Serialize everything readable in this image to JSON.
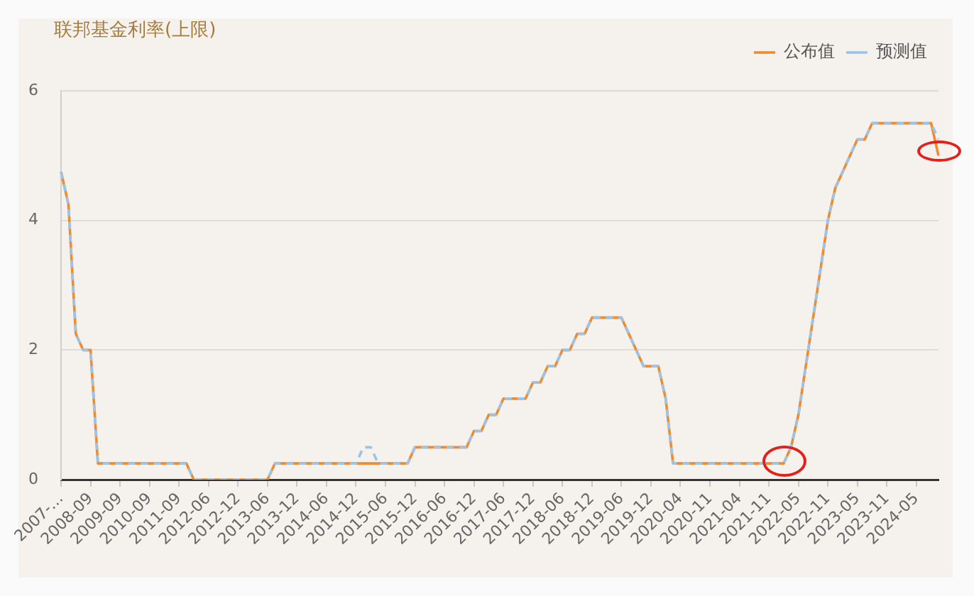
{
  "chart_data": {
    "type": "line",
    "title": "联邦基金利率(上限)",
    "categories": [
      "2007-…",
      null,
      null,
      null,
      "2008-09",
      null,
      null,
      null,
      "2009-09",
      null,
      null,
      null,
      "2010-09",
      null,
      null,
      null,
      "2011-09",
      null,
      null,
      null,
      "2012-06",
      null,
      null,
      null,
      "2012-12",
      null,
      null,
      null,
      "2013-06",
      null,
      null,
      null,
      "2013-12",
      null,
      null,
      null,
      "2014-06",
      null,
      null,
      null,
      "2014-12",
      null,
      null,
      null,
      "2015-06",
      null,
      null,
      null,
      "2015-12",
      null,
      null,
      null,
      "2016-06",
      null,
      null,
      null,
      "2016-12",
      null,
      null,
      null,
      "2017-06",
      null,
      null,
      null,
      "2017-12",
      null,
      null,
      null,
      "2018-06",
      null,
      null,
      null,
      "2018-12",
      null,
      null,
      null,
      "2019-06",
      null,
      null,
      null,
      "2019-12",
      null,
      null,
      null,
      "2020-04",
      null,
      null,
      null,
      "2020-11",
      null,
      null,
      null,
      "2021-04",
      null,
      null,
      null,
      "2021-11",
      null,
      null,
      null,
      "2022-05",
      null,
      null,
      null,
      "2022-11",
      null,
      null,
      null,
      "2023-05",
      null,
      null,
      null,
      "2023-11",
      null,
      null,
      null,
      "2024-05",
      null,
      null,
      null
    ],
    "series": [
      {
        "name": "公布值",
        "color": "#f08c2e",
        "line_style": "solid",
        "values": [
          4.75,
          4.25,
          2.25,
          2,
          2,
          0.25,
          0.25,
          0.25,
          0.25,
          0.25,
          0.25,
          0.25,
          0.25,
          0.25,
          0.25,
          0.25,
          0.25,
          0.25,
          0,
          0,
          0,
          0,
          0,
          0,
          0,
          0,
          0,
          0,
          0,
          0.25,
          0.25,
          0.25,
          0.25,
          0.25,
          0.25,
          0.25,
          0.25,
          0.25,
          0.25,
          0.25,
          0.25,
          0.25,
          0.25,
          0.25,
          0.25,
          0.25,
          0.25,
          0.25,
          0.5,
          0.5,
          0.5,
          0.5,
          0.5,
          0.5,
          0.5,
          0.5,
          0.75,
          0.75,
          1,
          1,
          1.25,
          1.25,
          1.25,
          1.25,
          1.5,
          1.5,
          1.75,
          1.75,
          2,
          2,
          2.25,
          2.25,
          2.5,
          2.5,
          2.5,
          2.5,
          2.5,
          2.25,
          2,
          1.75,
          1.75,
          1.75,
          1.25,
          0.25,
          0.25,
          0.25,
          0.25,
          0.25,
          0.25,
          0.25,
          0.25,
          0.25,
          0.25,
          0.25,
          0.25,
          0.25,
          0.25,
          0.25,
          0.25,
          0.5,
          1,
          1.75,
          2.5,
          3.25,
          4,
          4.5,
          4.75,
          5,
          5.25,
          5.25,
          5.5,
          5.5,
          5.5,
          5.5,
          5.5,
          5.5,
          5.5,
          5.5,
          5.5,
          5
        ]
      },
      {
        "name": "预测值",
        "color": "#9dc3e6",
        "line_style": "dashed",
        "values": [
          4.75,
          4.25,
          2.25,
          2,
          2,
          0.25,
          0.25,
          0.25,
          0.25,
          0.25,
          0.25,
          0.25,
          0.25,
          0.25,
          0.25,
          0.25,
          0.25,
          0.25,
          0,
          0,
          0,
          0,
          0,
          0,
          0,
          0,
          0,
          0,
          0,
          0.25,
          0.25,
          0.25,
          0.25,
          0.25,
          0.25,
          0.25,
          0.25,
          0.25,
          0.25,
          0.25,
          0.25,
          0.5,
          0.5,
          0.25,
          0.25,
          0.25,
          0.25,
          0.25,
          0.5,
          0.5,
          0.5,
          0.5,
          0.5,
          0.5,
          0.5,
          0.5,
          0.75,
          0.75,
          1,
          1,
          1.25,
          1.25,
          1.25,
          1.25,
          1.5,
          1.5,
          1.75,
          1.75,
          2,
          2,
          2.25,
          2.25,
          2.5,
          2.5,
          2.5,
          2.5,
          2.5,
          2.25,
          2,
          1.75,
          1.75,
          1.75,
          1.25,
          0.25,
          0.25,
          0.25,
          0.25,
          0.25,
          0.25,
          0.25,
          0.25,
          0.25,
          0.25,
          0.25,
          0.25,
          0.25,
          0.25,
          0.25,
          0.25,
          0.5,
          1,
          1.75,
          2.5,
          3.25,
          4,
          4.5,
          4.75,
          5,
          5.25,
          5.25,
          5.5,
          5.5,
          5.5,
          5.5,
          5.5,
          5.5,
          5.5,
          5.5,
          5.5,
          5.25
        ]
      }
    ],
    "ylim": [
      0,
      6
    ],
    "yticks": [
      0,
      2,
      4,
      6
    ],
    "grid": "y",
    "legend": "top right",
    "marker": "none"
  }
}
